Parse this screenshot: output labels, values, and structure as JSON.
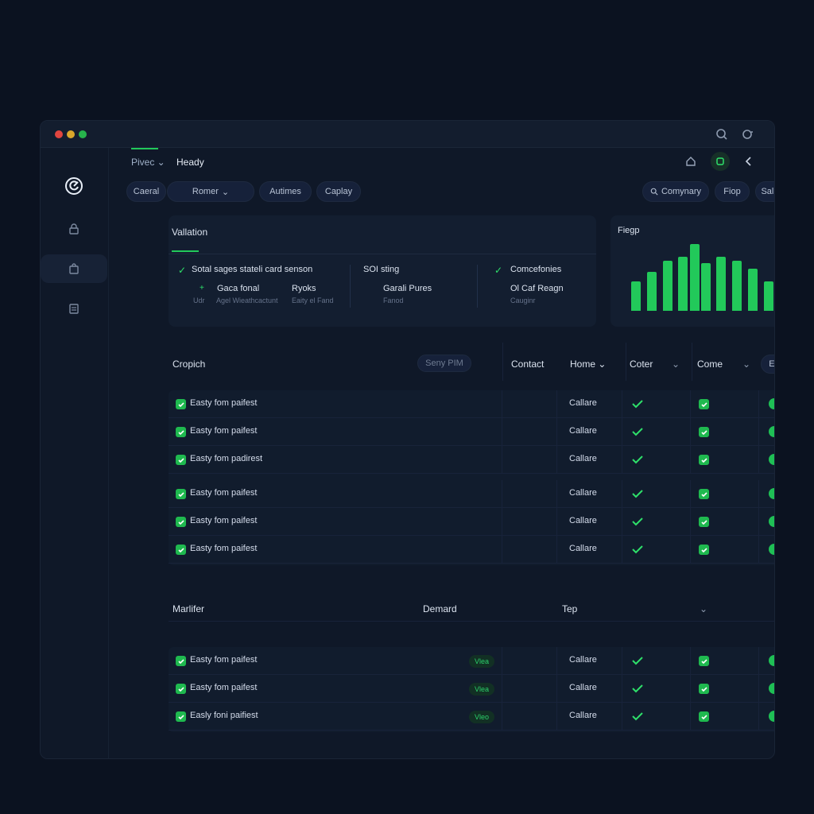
{
  "window": {
    "nav": {
      "dropdown": "Pivec",
      "title": "Heady"
    },
    "filters": [
      "Caeral",
      "Romer",
      "Autimes",
      "Caplay"
    ],
    "search_label": "Comynary",
    "right_buttons": [
      "Fiop",
      "Salis"
    ]
  },
  "validation": {
    "title": "Vallation",
    "items": [
      {
        "title": "Sotal sages stateli card senson",
        "subs": [
          "Gaca fonal",
          "Ryoks"
        ],
        "subs_small": [
          "Udr",
          "Agel Wieathcactunt",
          "Eaity el Fand"
        ]
      },
      {
        "title": "SOI sting",
        "subs": [
          "Garali Pures"
        ],
        "subs_small": [
          "Fanod"
        ]
      },
      {
        "title": "Comcefonies",
        "subs": [
          "Ol Caf Reagn"
        ],
        "subs_small": [
          "Cauginr"
        ]
      }
    ]
  },
  "chart_card": {
    "title": "Fiegp"
  },
  "chart_data": {
    "type": "bar",
    "title": "Fiegp",
    "values": [
      35,
      47,
      60,
      65,
      80,
      57,
      65,
      60,
      50,
      35
    ],
    "ylim": [
      0,
      80
    ]
  },
  "table1": {
    "title": "Cropich",
    "search_placeholder": "Seny PIM",
    "headers": [
      "Contact",
      "Home",
      "Coter",
      "Come"
    ],
    "action": "Estal",
    "rows": [
      {
        "name": "Easty fom paifest",
        "status": "Callare"
      },
      {
        "name": "Easty fom paifest",
        "status": "Callare"
      },
      {
        "name": "Easty fom padirest",
        "status": "Callare"
      },
      {
        "name": "Easty fom paifest",
        "status": "Callare"
      },
      {
        "name": "Easty fom paifest",
        "status": "Callare"
      },
      {
        "name": "Easty fom paifest",
        "status": "Callare"
      }
    ]
  },
  "table2": {
    "headers": [
      "Marlifer",
      "Demard",
      "Tep"
    ],
    "rows": [
      {
        "name": "Easty fom paifest",
        "tag": "Vlea",
        "status": "Callare"
      },
      {
        "name": "Easty fom paifest",
        "tag": "Vlea",
        "status": "Callare"
      },
      {
        "name": "Easly foni paifiest",
        "tag": "Vleo",
        "status": "Callare"
      }
    ]
  },
  "colors": {
    "accent": "#22c95a",
    "background": "#0b1220",
    "panel": "#131e30"
  }
}
